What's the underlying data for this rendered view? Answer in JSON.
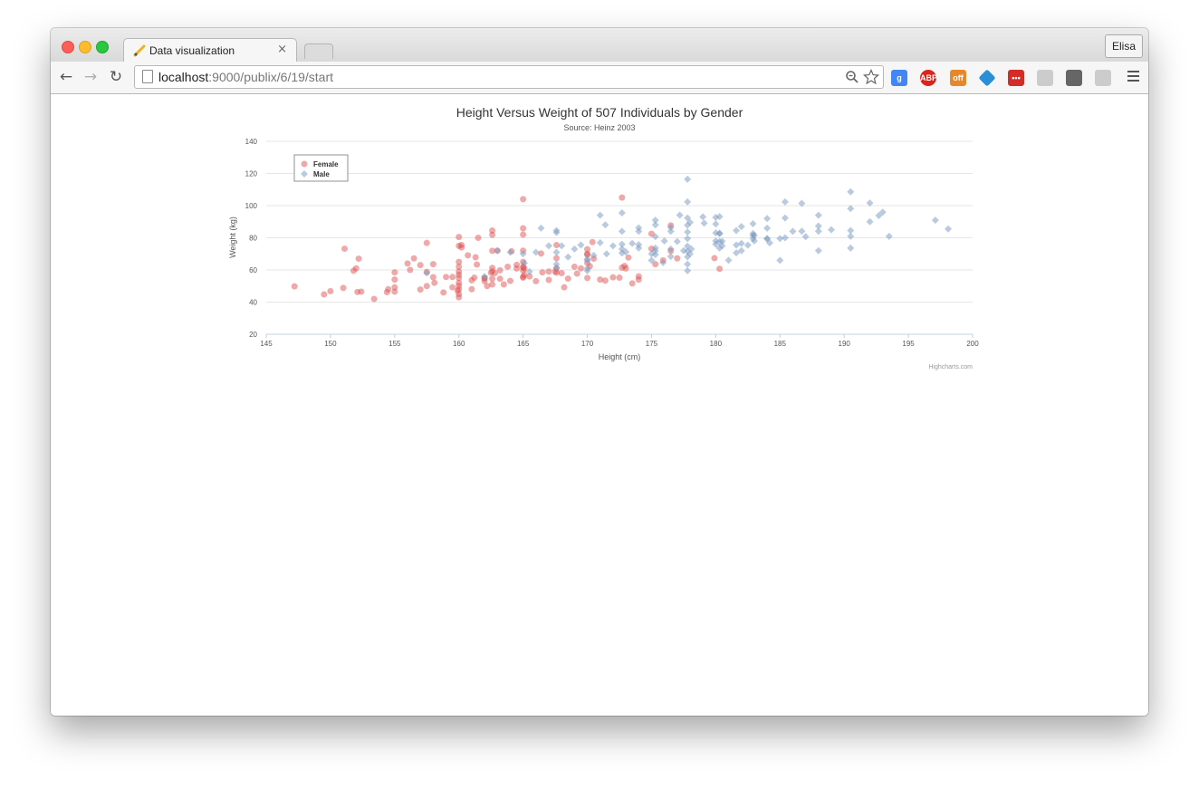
{
  "browser": {
    "tab_title": "Data visualization",
    "tab_close": "×",
    "profile_name": "Elisa",
    "url_host": "localhost",
    "url_rest": ":9000/publix/6/19/start",
    "nav": {
      "back": "←",
      "forward": "→",
      "reload": "↻"
    },
    "extensions": [
      {
        "name": "google-extension-icon",
        "label": "g",
        "color": "#4285f4"
      },
      {
        "name": "adblock-plus-icon",
        "label": "ABP",
        "color": "#d9251d"
      },
      {
        "name": "ghost-extension-icon",
        "label": "off",
        "color": "#e8862a"
      },
      {
        "name": "diamond-extension-icon",
        "label": "",
        "color": "#2b8fd8"
      },
      {
        "name": "lastpass-icon",
        "label": "•••",
        "color": "#d32d27"
      },
      {
        "name": "document-extension-icon",
        "label": "",
        "color": "#cccccc"
      },
      {
        "name": "mailbox-extension-icon",
        "label": "",
        "color": "#666666"
      },
      {
        "name": "dropbox-extension-icon",
        "label": "",
        "color": "#cccccc"
      }
    ]
  },
  "chart_data": {
    "type": "scatter",
    "title": "Height Versus Weight of 507 Individuals by Gender",
    "subtitle": "Source: Heinz 2003",
    "xlabel": "Height (cm)",
    "ylabel": "Weight (kg)",
    "xlim": [
      145,
      200
    ],
    "ylim": [
      20,
      140
    ],
    "xticks": [
      145,
      150,
      155,
      160,
      165,
      170,
      175,
      180,
      185,
      190,
      195,
      200
    ],
    "yticks": [
      20,
      40,
      60,
      80,
      100,
      120,
      140
    ],
    "grid": true,
    "legend_position": "top-left",
    "credits": "Highcharts.com",
    "series": [
      {
        "name": "Female",
        "marker": "circle",
        "color": "rgba(223,83,83,0.5)",
        "points": [
          [
            147.2,
            49.8
          ],
          [
            149.5,
            44.8
          ],
          [
            150.0,
            46.8
          ],
          [
            151.0,
            48.8
          ],
          [
            151.1,
            73.2
          ],
          [
            151.8,
            59.5
          ],
          [
            152.0,
            61.0
          ],
          [
            152.1,
            46.3
          ],
          [
            152.4,
            46.5
          ],
          [
            152.2,
            67.0
          ],
          [
            153.4,
            42.0
          ],
          [
            154.4,
            46.2
          ],
          [
            154.5,
            48.0
          ],
          [
            155.0,
            54.0
          ],
          [
            155.0,
            58.5
          ],
          [
            155.0,
            49.2
          ],
          [
            155.0,
            46.5
          ],
          [
            156.2,
            60.0
          ],
          [
            156.0,
            64.0
          ],
          [
            156.5,
            67.2
          ],
          [
            157.0,
            63.0
          ],
          [
            157.0,
            47.8
          ],
          [
            157.5,
            58.8
          ],
          [
            157.5,
            76.8
          ],
          [
            157.5,
            50.0
          ],
          [
            158.0,
            63.6
          ],
          [
            158.0,
            55.5
          ],
          [
            158.1,
            52.0
          ],
          [
            158.8,
            46.0
          ],
          [
            159.0,
            55.6
          ],
          [
            159.5,
            49.2
          ],
          [
            159.5,
            55.6
          ],
          [
            159.9,
            47.1
          ],
          [
            160.0,
            48.0
          ],
          [
            160.0,
            50.1
          ],
          [
            160.0,
            52.0
          ],
          [
            160.0,
            55.0
          ],
          [
            160.0,
            59.0
          ],
          [
            160.0,
            62.0
          ],
          [
            160.0,
            65.0
          ],
          [
            160.0,
            75.0
          ],
          [
            160.0,
            80.5
          ],
          [
            160.0,
            43.0
          ],
          [
            160.0,
            45.0
          ],
          [
            160.0,
            57.0
          ],
          [
            160.2,
            75.5
          ],
          [
            160.2,
            74.0
          ],
          [
            160.7,
            69.1
          ],
          [
            161.0,
            53.6
          ],
          [
            161.0,
            48.0
          ],
          [
            161.2,
            55.2
          ],
          [
            161.3,
            67.9
          ],
          [
            161.4,
            63.4
          ],
          [
            161.5,
            80.0
          ],
          [
            162.0,
            55.0
          ],
          [
            162.0,
            54.7
          ],
          [
            162.0,
            53.0
          ],
          [
            162.2,
            50.0
          ],
          [
            162.5,
            58.2
          ],
          [
            162.6,
            84.5
          ],
          [
            162.6,
            51.0
          ],
          [
            162.6,
            54.5
          ],
          [
            162.6,
            61.3
          ],
          [
            162.6,
            59.2
          ],
          [
            162.6,
            71.9
          ],
          [
            162.6,
            81.8
          ],
          [
            162.8,
            58.0
          ],
          [
            163.0,
            72.0
          ],
          [
            163.2,
            59.8
          ],
          [
            163.2,
            54.5
          ],
          [
            163.5,
            51.0
          ],
          [
            163.8,
            62.0
          ],
          [
            164.0,
            53.2
          ],
          [
            164.1,
            71.6
          ],
          [
            164.5,
            63.2
          ],
          [
            164.5,
            60.9
          ],
          [
            165.0,
            55.2
          ],
          [
            165.0,
            62.0
          ],
          [
            165.0,
            61.5
          ],
          [
            165.0,
            65.0
          ],
          [
            165.0,
            72.0
          ],
          [
            165.0,
            82.0
          ],
          [
            165.0,
            85.9
          ],
          [
            165.0,
            104.0
          ],
          [
            165.0,
            59.6
          ],
          [
            165.0,
            55.8
          ],
          [
            165.1,
            60.9
          ],
          [
            165.1,
            56.8
          ],
          [
            165.5,
            56.0
          ],
          [
            166.0,
            53.0
          ],
          [
            166.4,
            70.2
          ],
          [
            166.5,
            58.5
          ],
          [
            167.0,
            59.0
          ],
          [
            167.0,
            53.8
          ],
          [
            167.5,
            59.0
          ],
          [
            167.6,
            60.9
          ],
          [
            167.6,
            67.3
          ],
          [
            167.6,
            58.3
          ],
          [
            167.6,
            75.5
          ],
          [
            168.0,
            58.0
          ],
          [
            168.2,
            49.2
          ],
          [
            168.5,
            54.6
          ],
          [
            169.0,
            62.0
          ],
          [
            169.2,
            57.7
          ],
          [
            169.5,
            61.0
          ],
          [
            170.0,
            55.0
          ],
          [
            170.0,
            69.5
          ],
          [
            170.0,
            72.9
          ],
          [
            170.0,
            64.4
          ],
          [
            170.0,
            70.0
          ],
          [
            170.2,
            62.3
          ],
          [
            170.4,
            77.3
          ],
          [
            170.5,
            67.0
          ],
          [
            171.0,
            54.0
          ],
          [
            171.4,
            53.4
          ],
          [
            172.0,
            55.4
          ],
          [
            172.5,
            55.2
          ],
          [
            172.7,
            105.0
          ],
          [
            172.7,
            61.4
          ],
          [
            172.9,
            62.5
          ],
          [
            173.0,
            60.9
          ],
          [
            173.2,
            67.7
          ],
          [
            173.5,
            51.6
          ],
          [
            174.0,
            54.0
          ],
          [
            174.0,
            56.0
          ],
          [
            175.0,
            73.2
          ],
          [
            175.0,
            82.5
          ],
          [
            175.3,
            63.6
          ],
          [
            175.9,
            66.0
          ],
          [
            176.5,
            71.8
          ],
          [
            176.5,
            87.7
          ],
          [
            177.0,
            67.2
          ],
          [
            179.9,
            67.3
          ],
          [
            180.3,
            60.7
          ]
        ]
      },
      {
        "name": "Male",
        "marker": "diamond",
        "color": "rgba(119,152,191,0.5)",
        "points": [
          [
            157.5,
            58.0
          ],
          [
            162.0,
            56.0
          ],
          [
            163.0,
            72.0
          ],
          [
            164.0,
            71.0
          ],
          [
            165.0,
            70.0
          ],
          [
            165.1,
            64.2
          ],
          [
            165.5,
            59.0
          ],
          [
            166.0,
            71.0
          ],
          [
            166.4,
            86.0
          ],
          [
            167.0,
            75.0
          ],
          [
            167.6,
            83.3
          ],
          [
            167.6,
            84.5
          ],
          [
            167.6,
            71.0
          ],
          [
            167.6,
            63.6
          ],
          [
            167.6,
            61.4
          ],
          [
            168.0,
            75.0
          ],
          [
            168.5,
            68.0
          ],
          [
            169.0,
            73.0
          ],
          [
            169.5,
            75.5
          ],
          [
            170.0,
            59.5
          ],
          [
            170.0,
            61.0
          ],
          [
            170.0,
            66.0
          ],
          [
            170.5,
            69.1
          ],
          [
            171.0,
            94.0
          ],
          [
            171.4,
            88.0
          ],
          [
            171.5,
            70.0
          ],
          [
            172.0,
            75.0
          ],
          [
            172.7,
            95.5
          ],
          [
            172.7,
            84.0
          ],
          [
            172.7,
            73.0
          ],
          [
            172.7,
            70.5
          ],
          [
            172.7,
            76.0
          ],
          [
            173.0,
            71.2
          ],
          [
            173.5,
            76.5
          ],
          [
            174.0,
            86.2
          ],
          [
            174.0,
            84.0
          ],
          [
            174.0,
            73.6
          ],
          [
            174.0,
            75.7
          ],
          [
            175.0,
            66.0
          ],
          [
            175.0,
            70.0
          ],
          [
            175.3,
            71.8
          ],
          [
            175.3,
            69.5
          ],
          [
            175.3,
            73.6
          ],
          [
            175.3,
            80.7
          ],
          [
            175.3,
            90.9
          ],
          [
            175.3,
            88.0
          ],
          [
            175.9,
            64.6
          ],
          [
            176.0,
            78.0
          ],
          [
            176.5,
            68.4
          ],
          [
            176.5,
            73.0
          ],
          [
            176.5,
            84.0
          ],
          [
            176.5,
            86.4
          ],
          [
            177.0,
            77.7
          ],
          [
            177.2,
            94.1
          ],
          [
            177.5,
            72.0
          ],
          [
            177.8,
            116.4
          ],
          [
            177.8,
            102.3
          ],
          [
            177.8,
            92.3
          ],
          [
            177.8,
            87.8
          ],
          [
            177.8,
            83.6
          ],
          [
            177.8,
            79.5
          ],
          [
            177.8,
            74.8
          ],
          [
            177.8,
            71.6
          ],
          [
            177.8,
            63.6
          ],
          [
            177.8,
            59.5
          ],
          [
            177.8,
            68.2
          ],
          [
            178.0,
            89.6
          ],
          [
            178.1,
            73.0
          ],
          [
            179.0,
            93.0
          ],
          [
            179.1,
            89.1
          ],
          [
            180.0,
            88.6
          ],
          [
            180.0,
            83.0
          ],
          [
            180.0,
            92.7
          ],
          [
            180.0,
            78.0
          ],
          [
            180.0,
            76.0
          ],
          [
            180.3,
            82.8
          ],
          [
            180.3,
            93.2
          ],
          [
            180.3,
            77.7
          ],
          [
            180.3,
            73.6
          ],
          [
            180.3,
            82.6
          ],
          [
            180.5,
            77.8
          ],
          [
            181.0,
            66.0
          ],
          [
            181.6,
            75.5
          ],
          [
            181.6,
            84.5
          ],
          [
            181.6,
            70.6
          ],
          [
            182.0,
            72.0
          ],
          [
            182.0,
            87.0
          ],
          [
            182.0,
            76.5
          ],
          [
            182.5,
            75.4
          ],
          [
            182.9,
            88.7
          ],
          [
            182.9,
            81.4
          ],
          [
            182.9,
            79.5
          ],
          [
            182.9,
            82.7
          ],
          [
            183.0,
            81.5
          ],
          [
            184.0,
            92.0
          ],
          [
            184.0,
            86.0
          ],
          [
            184.0,
            79.3
          ],
          [
            184.0,
            79.6
          ],
          [
            184.2,
            76.8
          ],
          [
            185.0,
            79.5
          ],
          [
            185.4,
            102.3
          ],
          [
            185.4,
            92.3
          ],
          [
            185.4,
            80.0
          ],
          [
            186.0,
            84.0
          ],
          [
            186.7,
            101.4
          ],
          [
            186.7,
            84.1
          ],
          [
            187.0,
            80.7
          ],
          [
            188.0,
            84.1
          ],
          [
            188.0,
            87.3
          ],
          [
            188.0,
            94.0
          ],
          [
            188.0,
            72.0
          ],
          [
            189.0,
            85.0
          ],
          [
            190.5,
            108.6
          ],
          [
            190.5,
            84.5
          ],
          [
            190.5,
            80.9
          ],
          [
            190.5,
            73.6
          ],
          [
            190.5,
            98.2
          ],
          [
            192.0,
            101.6
          ],
          [
            192.0,
            90.0
          ],
          [
            192.7,
            93.8
          ],
          [
            193.0,
            95.9
          ],
          [
            193.5,
            80.9
          ],
          [
            197.1,
            90.9
          ],
          [
            198.1,
            85.5
          ],
          [
            170.0,
            66.8
          ],
          [
            171.0,
            77.0
          ],
          [
            178.0,
            70.0
          ],
          [
            180.5,
            75.0
          ],
          [
            183.0,
            78.0
          ],
          [
            185.0,
            66.0
          ]
        ]
      }
    ]
  }
}
